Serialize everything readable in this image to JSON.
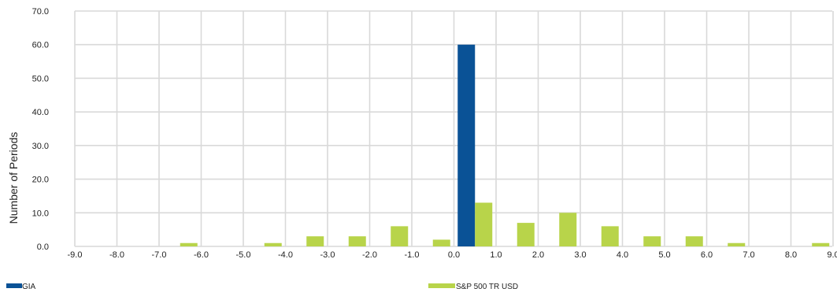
{
  "chart_data": {
    "type": "bar",
    "title": "",
    "xlabel": "",
    "ylabel": "Number of Periods",
    "ylim": [
      0,
      70
    ],
    "y_ticks": [
      "0.0",
      "10.0",
      "20.0",
      "30.0",
      "40.0",
      "50.0",
      "60.0",
      "70.0"
    ],
    "categories": [
      "-9.0",
      "-8.0",
      "-7.0",
      "-6.0",
      "-5.0",
      "-4.0",
      "-3.0",
      "-2.0",
      "-1.0",
      "0.0",
      "1.0",
      "2.0",
      "3.0",
      "4.0",
      "5.0",
      "6.0",
      "7.0",
      "8.0",
      "9.0"
    ],
    "series": [
      {
        "name": "GIA",
        "color": "#0a5296",
        "values": [
          0,
          0,
          0,
          0,
          0,
          0,
          0,
          0,
          0,
          0,
          60,
          0,
          0,
          0,
          0,
          0,
          0,
          0,
          0
        ]
      },
      {
        "name": "S&P 500 TR USD",
        "color": "#b8d44a",
        "values": [
          0,
          0,
          0,
          1,
          0,
          1,
          3,
          3,
          6,
          2,
          13,
          7,
          10,
          6,
          3,
          3,
          1,
          0,
          1
        ]
      }
    ],
    "grid": true,
    "legend_position": "bottom"
  }
}
